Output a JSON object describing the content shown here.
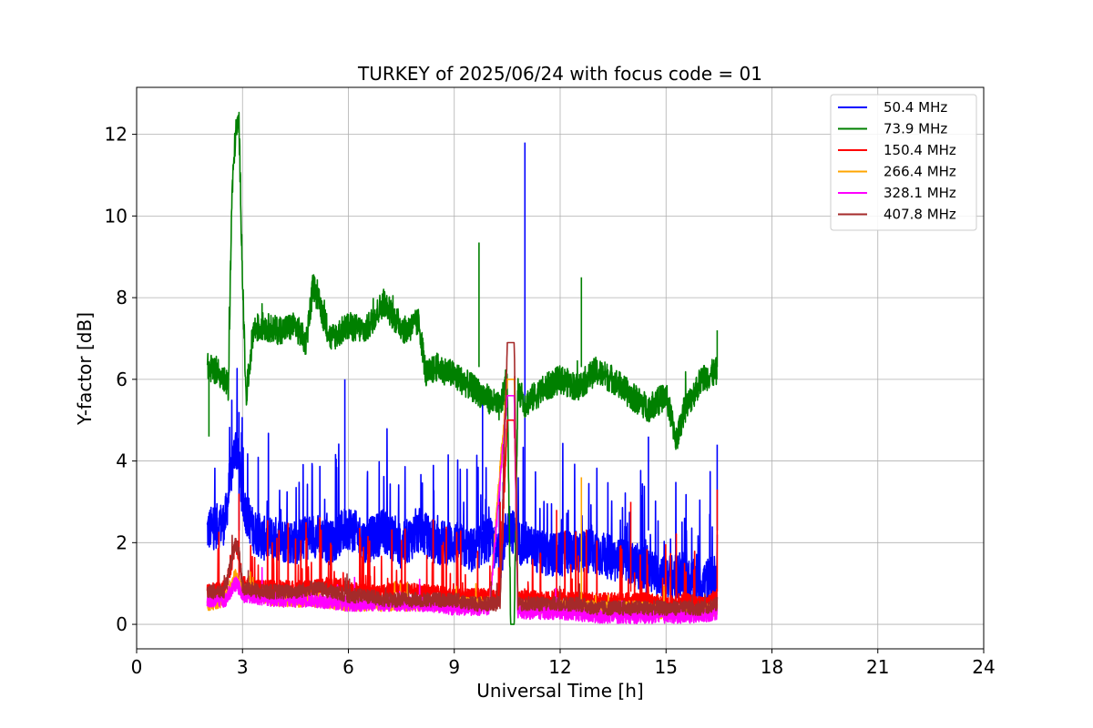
{
  "chart_data": {
    "type": "line",
    "title": "TURKEY of 2025/06/24 with focus code = 01",
    "xlabel": "Universal Time [h]",
    "ylabel": "Y-factor [dB]",
    "xlim": [
      0,
      24
    ],
    "ylim": [
      -0.6,
      13.15
    ],
    "xticks": [
      0,
      3,
      6,
      9,
      12,
      15,
      18,
      21,
      24
    ],
    "yticks": [
      0,
      2,
      4,
      6,
      8,
      10,
      12
    ],
    "grid": true,
    "legend_position": "top-right",
    "series": [
      {
        "name": " 50.4 MHz",
        "color": "#0000ff",
        "x": [
          2.0,
          2.5,
          2.7,
          2.8,
          2.9,
          3.0,
          3.3,
          3.6,
          4.0,
          4.5,
          5.0,
          5.5,
          6.0,
          6.5,
          7.0,
          7.5,
          8.0,
          8.5,
          9.0,
          9.5,
          10.0,
          10.3,
          10.5,
          10.6,
          10.8,
          11.0,
          11.3,
          11.6,
          12.0,
          12.5,
          13.0,
          13.5,
          14.0,
          14.5,
          15.0,
          15.5,
          16.0,
          16.45
        ],
        "y": [
          2.3,
          2.5,
          3.8,
          4.4,
          3.9,
          3.0,
          2.3,
          2.1,
          2.1,
          2.0,
          2.2,
          2.0,
          2.4,
          2.0,
          2.3,
          1.9,
          2.3,
          2.0,
          2.0,
          1.8,
          2.1,
          1.6,
          2.4,
          2.4,
          2.0,
          2.0,
          1.8,
          1.7,
          1.7,
          1.8,
          1.8,
          1.6,
          1.5,
          1.3,
          1.2,
          1.1,
          1.0,
          1.2
        ],
        "spikes": [
          [
            2.9,
            5.2
          ],
          [
            5.9,
            6.0
          ],
          [
            9.8,
            5.6
          ],
          [
            11.0,
            11.8
          ],
          [
            14.5,
            4.6
          ],
          [
            16.45,
            4.4
          ]
        ]
      },
      {
        "name": " 73.9 MHz",
        "color": "#008000",
        "x": [
          2.0,
          2.3,
          2.6,
          2.7,
          2.8,
          2.9,
          3.0,
          3.1,
          3.3,
          3.6,
          4.0,
          4.5,
          4.8,
          5.0,
          5.5,
          6.0,
          6.5,
          7.0,
          7.3,
          7.6,
          8.0,
          8.2,
          8.5,
          9.0,
          9.5,
          10.0,
          10.3,
          10.5,
          10.6,
          10.7,
          10.8,
          11.0,
          11.3,
          11.6,
          12.0,
          12.5,
          13.0,
          13.5,
          14.0,
          14.5,
          15.0,
          15.3,
          15.5,
          16.0,
          16.45
        ],
        "y": [
          6.3,
          6.2,
          5.8,
          10.5,
          12.0,
          12.3,
          8.5,
          5.5,
          7.2,
          7.3,
          7.2,
          7.3,
          6.9,
          8.3,
          7.0,
          7.3,
          7.2,
          7.9,
          7.5,
          7.2,
          7.4,
          6.1,
          6.3,
          6.1,
          5.8,
          5.5,
          5.3,
          6.0,
          0.0,
          0.0,
          5.7,
          5.4,
          5.6,
          5.8,
          6.0,
          5.8,
          6.2,
          6.0,
          5.6,
          5.3,
          5.6,
          4.5,
          5.2,
          6.0,
          6.2
        ],
        "spikes": [
          [
            2.05,
            4.6
          ],
          [
            9.7,
            9.35
          ],
          [
            12.6,
            8.5
          ],
          [
            16.45,
            7.2
          ]
        ]
      },
      {
        "name": " 150.4 MHz",
        "color": "#ff0000",
        "x": [
          2.0,
          2.5,
          2.7,
          2.8,
          2.9,
          3.0,
          3.5,
          4.0,
          4.5,
          5.0,
          5.5,
          6.0,
          6.5,
          7.0,
          7.5,
          8.0,
          8.5,
          9.0,
          9.5,
          10.0,
          10.3,
          10.5,
          10.6,
          10.7,
          10.8,
          11.0,
          11.5,
          12.0,
          12.5,
          13.0,
          13.5,
          14.0,
          14.5,
          15.0,
          15.5,
          16.0,
          16.45
        ],
        "y": [
          0.8,
          0.9,
          1.5,
          2.0,
          1.7,
          1.0,
          0.9,
          0.9,
          0.9,
          0.9,
          1.0,
          0.9,
          0.8,
          0.8,
          0.9,
          0.8,
          0.8,
          0.7,
          0.7,
          0.7,
          0.6,
          5.0,
          5.0,
          5.0,
          0.6,
          0.7,
          0.6,
          0.7,
          0.6,
          0.6,
          0.6,
          0.6,
          0.6,
          0.5,
          0.6,
          0.5,
          0.7
        ],
        "spikes": [
          [
            2.9,
            3.2
          ],
          [
            4.8,
            2.5
          ],
          [
            10.3,
            3.0
          ],
          [
            11.9,
            2.8
          ],
          [
            14.0,
            3.0
          ],
          [
            16.45,
            3.3
          ]
        ]
      },
      {
        "name": " 266.4 MHz",
        "color": "#ffa500",
        "x": [
          2.0,
          2.5,
          2.8,
          3.0,
          4.0,
          5.0,
          6.0,
          7.0,
          8.0,
          9.0,
          10.0,
          10.5,
          10.6,
          10.7,
          10.8,
          11.0,
          12.0,
          12.6,
          13.0,
          14.0,
          15.0,
          16.0,
          16.45
        ],
        "y": [
          0.5,
          0.6,
          1.2,
          0.8,
          0.6,
          0.6,
          0.5,
          0.5,
          0.5,
          0.5,
          0.5,
          6.0,
          6.0,
          6.0,
          0.5,
          0.4,
          0.4,
          0.4,
          0.4,
          0.4,
          0.3,
          0.3,
          0.4
        ],
        "spikes": [
          [
            12.6,
            3.6
          ]
        ]
      },
      {
        "name": " 328.1 MHz",
        "color": "#ff00ff",
        "x": [
          2.0,
          2.5,
          2.8,
          2.9,
          3.0,
          4.0,
          5.0,
          6.0,
          7.0,
          8.0,
          9.0,
          10.0,
          10.5,
          10.6,
          10.7,
          10.8,
          11.0,
          12.0,
          13.0,
          14.0,
          15.0,
          16.0,
          16.45
        ],
        "y": [
          0.6,
          0.6,
          1.0,
          0.9,
          0.7,
          0.6,
          0.6,
          0.5,
          0.5,
          0.5,
          0.4,
          0.4,
          5.6,
          5.6,
          5.6,
          0.3,
          0.3,
          0.3,
          0.2,
          0.2,
          0.2,
          0.2,
          0.3
        ],
        "spikes": []
      },
      {
        "name": " 407.8 MHz",
        "color": "#a52a2a",
        "x": [
          2.0,
          2.5,
          2.7,
          2.8,
          2.9,
          3.0,
          3.5,
          4.0,
          4.5,
          5.0,
          5.5,
          6.0,
          6.5,
          7.0,
          7.5,
          8.0,
          8.5,
          9.0,
          9.5,
          10.0,
          10.3,
          10.5,
          10.6,
          10.7,
          10.8,
          11.0,
          11.5,
          12.0,
          12.5,
          13.0,
          13.5,
          14.0,
          14.5,
          15.0,
          15.5,
          16.0,
          16.45
        ],
        "y": [
          0.8,
          0.8,
          1.6,
          2.0,
          1.8,
          0.9,
          0.8,
          0.8,
          0.8,
          0.9,
          0.8,
          0.7,
          0.7,
          0.6,
          0.6,
          0.6,
          0.6,
          0.6,
          0.5,
          0.5,
          0.5,
          6.9,
          6.9,
          6.9,
          0.5,
          0.5,
          0.5,
          0.5,
          0.5,
          0.4,
          0.4,
          0.4,
          0.4,
          0.4,
          0.4,
          0.4,
          0.5
        ],
        "spikes": []
      }
    ]
  }
}
